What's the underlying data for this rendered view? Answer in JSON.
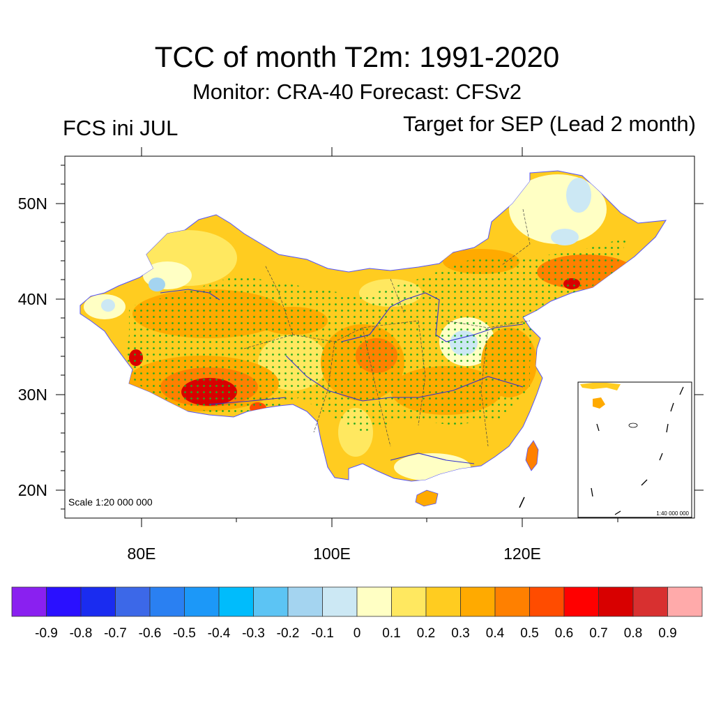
{
  "header": {
    "title": "TCC of month T2m: 1991-2020",
    "subtitle": "Monitor: CRA-40   Forecast: CFSv2",
    "left_label": "FCS ini JUL",
    "right_label": "Target for SEP (Lead 2 month)"
  },
  "map": {
    "lat_labels": [
      "50N",
      "40N",
      "30N",
      "20N"
    ],
    "lon_labels": [
      "80E",
      "100E",
      "120E"
    ],
    "scale_text": "Scale 1:20 000 000",
    "inset_scale_text": "1:40 000 000",
    "stipple_color": "#22aa22"
  },
  "colorbar": {
    "labels": [
      "-0.9",
      "-0.8",
      "-0.7",
      "-0.6",
      "-0.5",
      "-0.4",
      "-0.3",
      "-0.2",
      "-0.1",
      "0",
      "0.1",
      "0.2",
      "0.3",
      "0.4",
      "0.5",
      "0.6",
      "0.7",
      "0.8",
      "0.9"
    ],
    "colors": [
      "#8a20f0",
      "#2a10ff",
      "#1a2cf0",
      "#3c68e8",
      "#2a80f2",
      "#1c98f8",
      "#00bcfc",
      "#5cc4f4",
      "#a4d4f0",
      "#cce8f4",
      "#ffffc4",
      "#ffe860",
      "#ffcc20",
      "#ffaa00",
      "#ff8000",
      "#ff4c00",
      "#ff0000",
      "#d80000",
      "#d83030",
      "#ffaaaa"
    ]
  }
}
